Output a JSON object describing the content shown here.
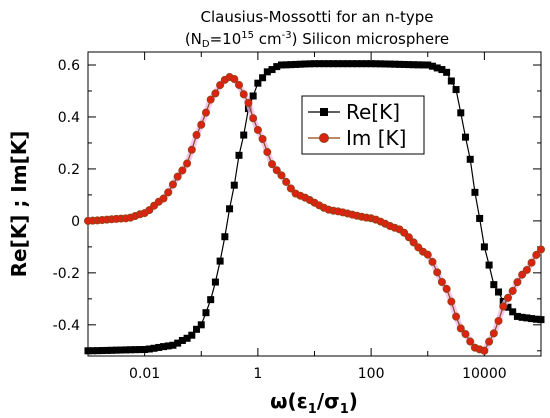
{
  "chart_data": {
    "type": "line",
    "title_line1": "Clausius-Mossotti for an n-type",
    "title_line2": {
      "paren_open": "(N",
      "sub_D": "D",
      "eq_10": "=10",
      "sup_15": "15",
      "unit_cm": " cm",
      "sup_neg3": "-3",
      "rest": ") Silicon microsphere"
    },
    "xlabel": {
      "prefix": "ω(ε",
      "sub1": "1",
      "mid": "/σ",
      "sub2": "1",
      "suffix": ")"
    },
    "ylabel": "Re[K] ; Im[K]",
    "x_scale": "log",
    "xlim": [
      0.001,
      100000
    ],
    "ylim": [
      -0.52,
      0.65
    ],
    "x_ticks": [
      {
        "value": 0.01,
        "label": "0.01"
      },
      {
        "value": 1,
        "label": "1"
      },
      {
        "value": 100,
        "label": "100"
      },
      {
        "value": 10000,
        "label": "10000"
      }
    ],
    "y_ticks": [
      {
        "value": -0.4,
        "label": "-0.4"
      },
      {
        "value": -0.2,
        "label": "-0.2"
      },
      {
        "value": 0,
        "label": "0"
      },
      {
        "value": 0.2,
        "label": "0.2"
      },
      {
        "value": 0.4,
        "label": "0.4"
      },
      {
        "value": 0.6,
        "label": "0.6"
      }
    ],
    "legend_position": "top-right",
    "series": [
      {
        "name": "Re[K]",
        "color": "#000000",
        "marker": "square",
        "points": [
          [
            0.001,
            -0.5
          ],
          [
            0.01,
            -0.495
          ],
          [
            0.03,
            -0.48
          ],
          [
            0.06,
            -0.45
          ],
          [
            0.1,
            -0.4
          ],
          [
            0.15,
            -0.3
          ],
          [
            0.22,
            -0.15
          ],
          [
            0.32,
            0.05
          ],
          [
            0.5,
            0.28
          ],
          [
            0.7,
            0.44
          ],
          [
            1.0,
            0.53
          ],
          [
            1.5,
            0.575
          ],
          [
            2.5,
            0.6
          ],
          [
            10,
            0.605
          ],
          [
            100,
            0.605
          ],
          [
            1000,
            0.6
          ],
          [
            2000,
            0.58
          ],
          [
            3000,
            0.52
          ],
          [
            5000,
            0.3
          ],
          [
            7000,
            0.1
          ],
          [
            10000,
            -0.1
          ],
          [
            15000,
            -0.25
          ],
          [
            25000,
            -0.33
          ],
          [
            40000,
            -0.37
          ],
          [
            100000,
            -0.38
          ]
        ]
      },
      {
        "name": "Im [K]",
        "color": "#8b4513",
        "marker_fill": "#dd2211",
        "marker": "circle",
        "points": [
          [
            0.001,
            0.0
          ],
          [
            0.005,
            0.01
          ],
          [
            0.01,
            0.03
          ],
          [
            0.02,
            0.08
          ],
          [
            0.05,
            0.2
          ],
          [
            0.1,
            0.37
          ],
          [
            0.15,
            0.47
          ],
          [
            0.25,
            0.54
          ],
          [
            0.3,
            0.555
          ],
          [
            0.4,
            0.545
          ],
          [
            0.6,
            0.48
          ],
          [
            1.0,
            0.35
          ],
          [
            2,
            0.2
          ],
          [
            5,
            0.1
          ],
          [
            20,
            0.04
          ],
          [
            100,
            0.01
          ],
          [
            300,
            -0.03
          ],
          [
            1000,
            -0.13
          ],
          [
            2000,
            -0.25
          ],
          [
            4000,
            -0.42
          ],
          [
            7000,
            -0.49
          ],
          [
            10000,
            -0.5
          ],
          [
            14000,
            -0.44
          ],
          [
            25000,
            -0.3
          ],
          [
            50000,
            -0.2
          ],
          [
            100000,
            -0.11
          ]
        ]
      }
    ]
  }
}
